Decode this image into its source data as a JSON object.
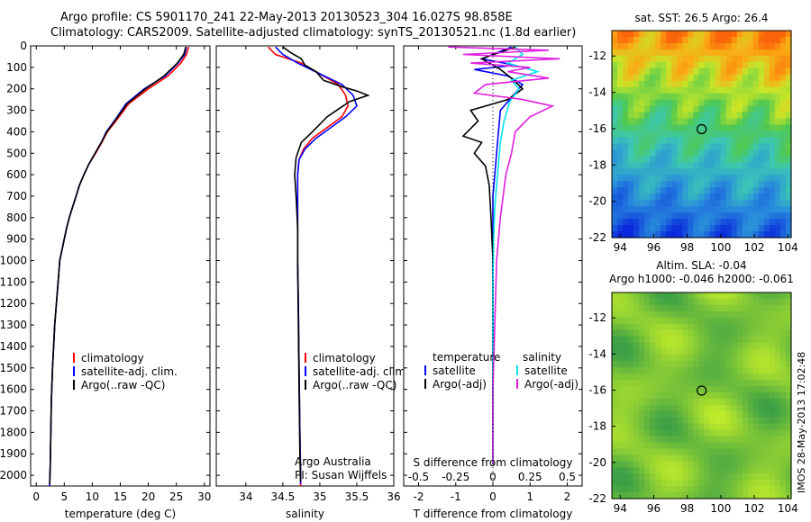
{
  "header": {
    "line1": "Argo profile: CS 5901170_241 22-May-2013 20130523_304 16.027S 98.858E",
    "line2": "Climatology: CARS2009. Satellite-adjusted climatology: synTS_20130521.nc (1.8d earlier)"
  },
  "side_credit": "IMOS 28-May-2013 17:02:48",
  "colors": {
    "red": "#ff0000",
    "blue": "#0000ff",
    "black": "#000000",
    "cyan": "#00e5ee",
    "magenta": "#e020e0"
  },
  "chart_data": [
    {
      "type": "line",
      "xlabel": "temperature (deg C)",
      "xlim": [
        -1,
        31
      ],
      "xticks": [
        0,
        5,
        10,
        15,
        20,
        25,
        30
      ],
      "ylim": [
        2050,
        0
      ],
      "yticks": [
        0,
        100,
        200,
        300,
        400,
        500,
        600,
        700,
        800,
        900,
        1000,
        1100,
        1200,
        1300,
        1400,
        1500,
        1600,
        1700,
        1800,
        1900,
        2000
      ],
      "legend": {
        "position": "bottom-right",
        "entries": [
          "climatology",
          "satellite-adj. clim.",
          "Argo(..raw -QC)"
        ]
      },
      "series": [
        {
          "name": "climatology",
          "color": "red",
          "x": [
            27.2,
            26.8,
            25.8,
            23.5,
            20,
            16.5,
            14.5,
            12.7,
            11.7,
            10.6,
            9.4,
            8.5,
            7.7,
            7.1,
            6.5,
            5.9,
            5.4,
            5.0,
            4.6,
            4.2,
            3.9,
            3.6,
            3.3,
            3.1,
            2.9,
            2.7,
            2.6,
            2.5,
            2.4
          ],
          "y": [
            5,
            40,
            80,
            140,
            200,
            270,
            340,
            400,
            450,
            500,
            550,
            600,
            650,
            700,
            750,
            800,
            850,
            900,
            950,
            1000,
            1100,
            1200,
            1300,
            1400,
            1500,
            1650,
            1800,
            1950,
            2050
          ]
        },
        {
          "name": "satellite-adj. clim.",
          "color": "blue",
          "x": [
            26.8,
            26.5,
            25.3,
            23,
            19.3,
            16,
            14.2,
            12.5,
            11.6,
            10.5,
            9.4,
            8.5,
            7.7,
            7.1,
            6.5,
            5.9,
            5.4,
            5.0,
            4.6,
            4.2,
            3.9,
            3.6,
            3.3,
            3.1,
            2.9,
            2.7,
            2.6,
            2.5,
            2.4
          ],
          "y": [
            5,
            40,
            80,
            140,
            200,
            270,
            340,
            400,
            450,
            500,
            550,
            600,
            650,
            700,
            750,
            800,
            850,
            900,
            950,
            1000,
            1100,
            1200,
            1300,
            1400,
            1500,
            1650,
            1800,
            1950,
            2050
          ]
        },
        {
          "name": "Argo(..raw -QC)",
          "color": "black",
          "x": [
            26.7,
            26.3,
            25.2,
            22.8,
            19.5,
            16.2,
            14.3,
            12.6,
            11.6,
            10.5,
            9.4,
            8.5,
            7.7,
            7.1,
            6.5,
            5.9,
            5.4,
            5.0,
            4.6,
            4.2,
            3.9,
            3.6,
            3.3,
            3.1,
            2.9,
            2.7,
            2.6,
            2.5,
            2.4
          ],
          "y": [
            5,
            40,
            80,
            140,
            200,
            270,
            340,
            400,
            450,
            500,
            550,
            600,
            650,
            700,
            750,
            800,
            850,
            900,
            950,
            1000,
            1100,
            1200,
            1300,
            1400,
            1500,
            1650,
            1800,
            1950,
            2040
          ]
        }
      ]
    },
    {
      "type": "line",
      "xlabel": "salinity",
      "xlim": [
        33.6,
        36.0
      ],
      "xticks": [
        34,
        34.5,
        35,
        35.5,
        36
      ],
      "ylim": [
        2050,
        0
      ],
      "legend": {
        "position": "bottom-right",
        "entries": [
          "climatology",
          "satellite-adj. clim.",
          "Argo(..raw -QC)"
        ]
      },
      "annotation": [
        "Argo Australia",
        "PI: Susan Wijffels"
      ],
      "series": [
        {
          "name": "climatology",
          "color": "red",
          "x": [
            34.3,
            34.4,
            34.75,
            35.0,
            35.25,
            35.35,
            35.38,
            35.3,
            35.1,
            34.9,
            34.78,
            34.72,
            34.7,
            34.7,
            34.7,
            34.71,
            34.72,
            34.73,
            34.74,
            34.74
          ],
          "y": [
            5,
            40,
            80,
            130,
            180,
            230,
            280,
            330,
            380,
            430,
            480,
            530,
            600,
            800,
            1000,
            1200,
            1500,
            1800,
            2000,
            2050
          ]
        },
        {
          "name": "satellite-adj. clim.",
          "color": "blue",
          "x": [
            34.4,
            34.5,
            34.7,
            35.0,
            35.3,
            35.45,
            35.5,
            35.35,
            35.15,
            34.95,
            34.8,
            34.72,
            34.7,
            34.7,
            34.7,
            34.71,
            34.72,
            34.73,
            34.74,
            34.74
          ],
          "y": [
            5,
            40,
            80,
            130,
            180,
            230,
            280,
            330,
            380,
            430,
            480,
            530,
            600,
            800,
            1000,
            1200,
            1500,
            1800,
            2000,
            2040
          ]
        },
        {
          "name": "Argo(..raw -QC)",
          "color": "black",
          "x": [
            34.5,
            34.6,
            34.75,
            34.8,
            34.95,
            35.05,
            35.3,
            35.5,
            35.65,
            35.4,
            35.1,
            34.9,
            34.75,
            34.68,
            34.66,
            34.68,
            34.7,
            34.7,
            34.71,
            34.72,
            34.73,
            34.74
          ],
          "y": [
            5,
            30,
            60,
            90,
            120,
            160,
            190,
            210,
            230,
            260,
            330,
            400,
            450,
            520,
            600,
            700,
            850,
            1000,
            1300,
            1600,
            1900,
            2030
          ]
        }
      ]
    },
    {
      "type": "line",
      "xlabel": "T difference from climatology",
      "xlim": [
        -2.4,
        2.4
      ],
      "xticks": [
        -2,
        -1,
        0,
        1,
        2
      ],
      "top_xlabel": "S difference from climatology",
      "top_xticks": [
        "-0.5",
        "-0.25",
        "0",
        "0.25",
        "0.5"
      ],
      "ylim": [
        2050,
        0
      ],
      "legend": {
        "position": "bottom",
        "entries": [
          "temperature",
          "satellite",
          "Argo(-adj)",
          "salinity",
          "satellite",
          "Argo(-adj)"
        ]
      },
      "series": [
        {
          "name": "temperature satellite",
          "color": "blue",
          "x": [
            0.5,
            -0.3,
            0.6,
            -0.5,
            0.4,
            0.8,
            0.2,
            0.15,
            0.1,
            0.05,
            0.0,
            0.0,
            0.0,
            0.0,
            0.0,
            0.0,
            0.0,
            0.0
          ],
          "y": [
            5,
            60,
            90,
            110,
            140,
            180,
            300,
            400,
            500,
            600,
            700,
            800,
            1000,
            1200,
            1400,
            1600,
            1800,
            1950
          ]
        },
        {
          "name": "temperature Argo(-adj)",
          "color": "black",
          "x": [
            0.6,
            -0.3,
            0.2,
            0.5,
            0.8,
            0.4,
            -0.6,
            -0.4,
            -0.8,
            -0.3,
            -0.5,
            -0.2,
            -0.1,
            -0.05,
            0.0,
            0.0,
            0.0,
            0.0
          ],
          "y": [
            5,
            60,
            110,
            150,
            200,
            250,
            300,
            350,
            420,
            450,
            500,
            560,
            650,
            800,
            1000,
            1200,
            1600,
            1950
          ]
        },
        {
          "name": "salinity satellite",
          "color": "cyan",
          "x": [
            0.6,
            0.8,
            0.4,
            1.2,
            0.5,
            0.7,
            0.45,
            0.3,
            0.2,
            0.15,
            0.1,
            0.05,
            0.02,
            0.0,
            0.0,
            0.0,
            0.0
          ],
          "y": [
            5,
            40,
            80,
            120,
            160,
            200,
            260,
            350,
            450,
            550,
            650,
            750,
            900,
            1100,
            1400,
            1700,
            1950
          ]
        },
        {
          "name": "salinity Argo(-adj)",
          "color": "magenta",
          "x": [
            -1.2,
            1.5,
            -0.8,
            1.8,
            -0.6,
            1.0,
            0.4,
            1.5,
            -0.2,
            -0.5,
            0.8,
            1.6,
            1.0,
            0.6,
            0.5,
            0.35,
            0.2,
            0.1,
            0.05,
            0.0,
            0.0
          ],
          "y": [
            5,
            20,
            40,
            60,
            80,
            100,
            120,
            150,
            180,
            220,
            250,
            280,
            330,
            400,
            500,
            600,
            800,
            1000,
            1300,
            1600,
            1950
          ]
        }
      ]
    },
    {
      "type": "heatmap",
      "title": "sat. SST: 26.5  Argo: 26.4",
      "xlim": [
        93.5,
        104.2
      ],
      "ylim": [
        -22,
        -10.6
      ],
      "xticks": [
        94,
        96,
        98,
        100,
        102,
        104
      ],
      "yticks": [
        -12,
        -14,
        -16,
        -18,
        -20,
        -22
      ],
      "marker": {
        "lon": 98.858,
        "lat": -16.027
      }
    },
    {
      "type": "heatmap",
      "title": "Altim. SLA: -0.04",
      "subtitle": "Argo h1000: -0.046  h2000: -0.061",
      "xlim": [
        93.5,
        104.2
      ],
      "ylim": [
        -22,
        -10.6
      ],
      "xticks": [
        94,
        96,
        98,
        100,
        102,
        104
      ],
      "yticks": [
        -12,
        -14,
        -16,
        -18,
        -20,
        -22
      ],
      "marker": {
        "lon": 98.858,
        "lat": -16.027
      }
    }
  ]
}
